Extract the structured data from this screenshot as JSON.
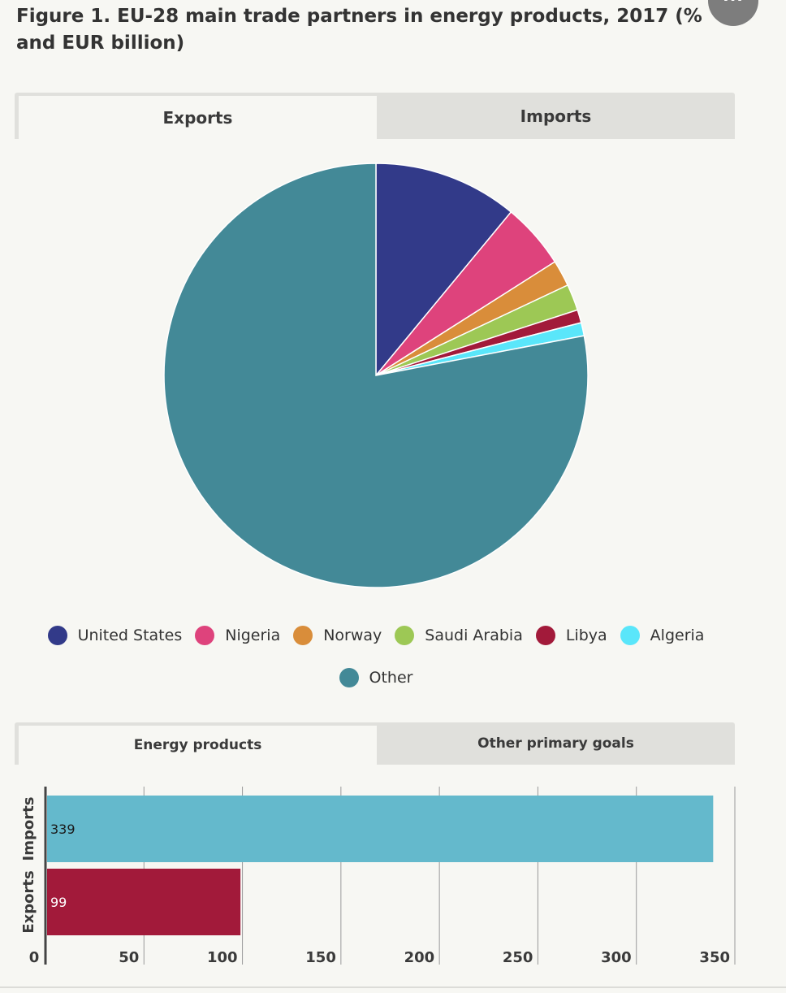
{
  "title": "Figure 1. EU-28 main trade partners in energy products, 2017 (% and EUR billion)",
  "menu_button_label": "...",
  "top_tabs": [
    {
      "label": "Exports",
      "active": true
    },
    {
      "label": "Imports",
      "active": false
    }
  ],
  "bottom_tabs": [
    {
      "label": "Energy products",
      "active": true
    },
    {
      "label": "Other primary goals",
      "active": false
    }
  ],
  "chart_data": [
    {
      "type": "pie",
      "title": "",
      "legend_placement": "bottom",
      "slices": [
        {
          "name": "United States",
          "value": 11.0,
          "color": "#323a89"
        },
        {
          "name": "Nigeria",
          "value": 5.0,
          "color": "#de437c"
        },
        {
          "name": "Norway",
          "value": 2.0,
          "color": "#d98d3a"
        },
        {
          "name": "Saudi Arabia",
          "value": 2.0,
          "color": "#9dc855"
        },
        {
          "name": "Libya",
          "value": 1.0,
          "color": "#a21a3a"
        },
        {
          "name": "Algeria",
          "value": 1.0,
          "color": "#5ae6fa"
        },
        {
          "name": "Other",
          "value": 78.0,
          "color": "#438997"
        }
      ]
    },
    {
      "type": "bar",
      "orientation": "horizontal",
      "title": "",
      "categories": [
        "Imports",
        "Exports"
      ],
      "values": [
        339,
        99
      ],
      "colors": [
        "#64b9cc",
        "#a21a3a"
      ],
      "data_labels": [
        "339",
        "99"
      ],
      "xlim": [
        0,
        350
      ],
      "xticks": [
        0,
        50,
        100,
        150,
        200,
        250,
        300,
        350
      ],
      "grid": true
    }
  ]
}
